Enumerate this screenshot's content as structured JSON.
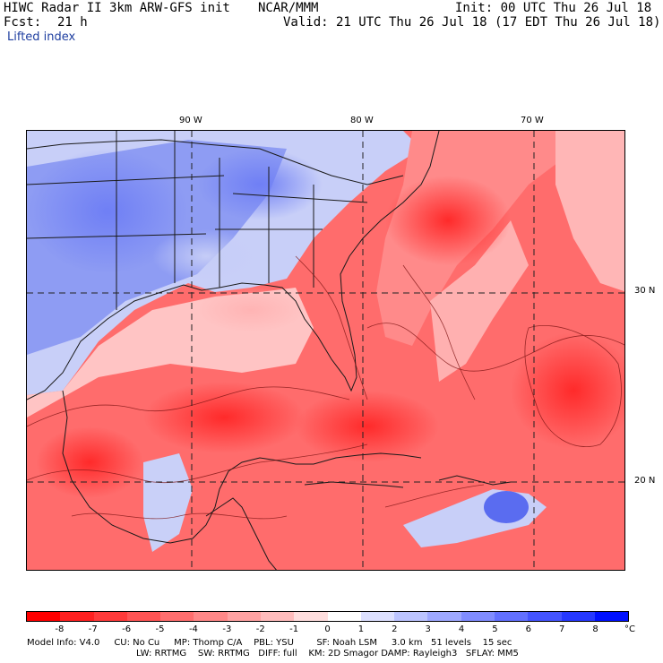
{
  "header": {
    "model": "HIWC Radar II 3km ARW-GFS init",
    "org": "NCAR/MMM",
    "init": "Init: 00 UTC Thu 26 Jul 18",
    "fcst_label": "Fcst:",
    "fcst_value": "21 h",
    "valid": "Valid: 21 UTC Thu 26 Jul 18 (17 EDT Thu 26 Jul 18)",
    "field": "Lifted index"
  },
  "map": {
    "lon_labels": [
      "90 W",
      "80 W",
      "70 W"
    ],
    "lat_labels": [
      "30 N",
      "20 N"
    ]
  },
  "colorbar": {
    "labels": [
      "-8",
      "-7",
      "-6",
      "-5",
      "-4",
      "-3",
      "-2",
      "-1",
      "0",
      "1",
      "2",
      "3",
      "4",
      "5",
      "6",
      "7",
      "8"
    ],
    "unit": "°C",
    "colors": [
      "#ff0000",
      "#ff2020",
      "#ff3a3a",
      "#ff5454",
      "#ff6e6e",
      "#ff8888",
      "#ffa2a2",
      "#ffbcbc",
      "#ffdede",
      "#ffffff",
      "#dde0ff",
      "#bcc4ff",
      "#9ea8ff",
      "#808cff",
      "#6270ff",
      "#4454ff",
      "#2638ff",
      "#0010ff"
    ]
  },
  "footer": {
    "line1": "Model Info: V4.0     CU: No Cu     MP: Thomp C/A    PBL: YSU        SF: Noah LSM     3.0 km   51 levels    15 sec",
    "line2": "LW: RRTMG    SW: RRTMG   DIFF: full    KM: 2D Smagor DAMP: Rayleigh3   SFLAY: MM5"
  }
}
